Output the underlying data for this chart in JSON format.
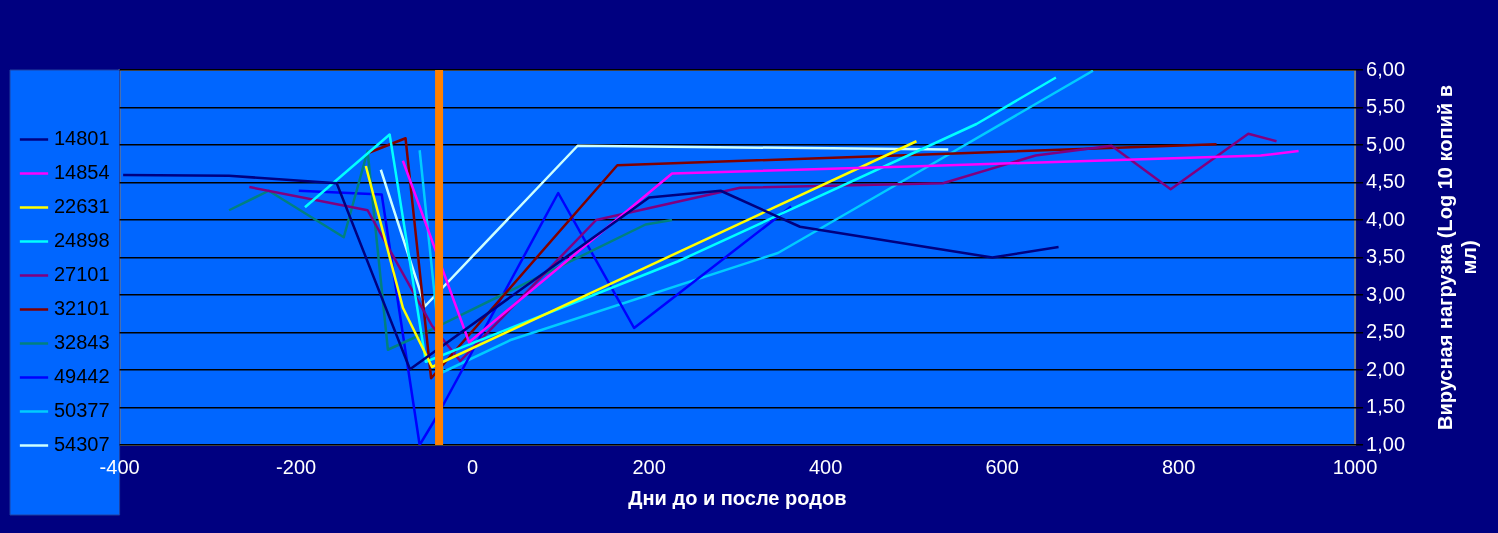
{
  "chart_data": {
    "type": "line",
    "xlabel": "Дни до и после родов",
    "ylabel": "Вирусная нагрузка (Log 10 копий в мл)",
    "xlim": [
      -400,
      1000
    ],
    "xticks": [
      -400,
      -200,
      0,
      200,
      400,
      600,
      800,
      1000
    ],
    "ylim": [
      1,
      6
    ],
    "yticks": [
      {
        "value": 1,
        "label": "1,00"
      },
      {
        "value": 1.5,
        "label": "1,50"
      },
      {
        "value": 2,
        "label": "2,00"
      },
      {
        "value": 2.5,
        "label": "2,50"
      },
      {
        "value": 3,
        "label": "3,00"
      },
      {
        "value": 3.5,
        "label": "3,50"
      },
      {
        "value": 4,
        "label": "4,00"
      },
      {
        "value": 4.5,
        "label": "4,50"
      },
      {
        "value": 5,
        "label": "5,00"
      },
      {
        "value": 5.5,
        "label": "5,50"
      },
      {
        "value": 6,
        "label": "6,00"
      }
    ],
    "grid": "y",
    "legend": "left",
    "marker": "none",
    "line_style": "solid",
    "ref_lines": [
      {
        "axis": "x",
        "value": -38,
        "color": "#ff8000"
      }
    ],
    "series": [
      {
        "name": "14801",
        "color": "#000080",
        "x": [
          -396,
          -276,
          -154,
          -71,
          200,
          281,
          371,
          514,
          589,
          664
        ],
        "values": [
          4.6,
          4.59,
          4.49,
          2.01,
          4.3,
          4.39,
          3.91,
          3.64,
          3.5,
          3.64
        ]
      },
      {
        "name": "14854",
        "color": "#ff00ff",
        "x": [
          -79,
          -4,
          226,
          514,
          893,
          936
        ],
        "values": [
          4.79,
          2.37,
          4.62,
          4.72,
          4.86,
          4.92
        ]
      },
      {
        "name": "22631",
        "color": "#ffff00",
        "x": [
          -121,
          -79,
          -46,
          503
        ],
        "values": [
          4.72,
          2.83,
          2.04,
          5.05
        ]
      },
      {
        "name": "24898",
        "color": "#00ffff",
        "x": [
          -190,
          -94,
          -53,
          233,
          571,
          661
        ],
        "values": [
          4.17,
          5.14,
          2.11,
          3.45,
          5.28,
          5.9
        ]
      },
      {
        "name": "27101",
        "color": "#800080",
        "x": [
          -253,
          -119,
          -46,
          -14,
          140,
          303,
          533,
          638,
          724,
          791,
          879,
          911
        ],
        "values": [
          4.44,
          4.13,
          2.59,
          2.12,
          4.0,
          4.43,
          4.49,
          4.86,
          4.99,
          4.41,
          5.15,
          5.05
        ]
      },
      {
        "name": "32101",
        "color": "#800000",
        "x": [
          -117,
          -76,
          -47,
          164,
          843
        ],
        "values": [
          4.9,
          5.09,
          1.89,
          4.73,
          5.01
        ]
      },
      {
        "name": "32843",
        "color": "#008080",
        "x": [
          -276,
          -231,
          -146,
          -119,
          -96,
          -57,
          196,
          226
        ],
        "values": [
          4.13,
          4.39,
          3.77,
          4.92,
          2.27,
          2.48,
          3.94,
          4.0
        ]
      },
      {
        "name": "49442",
        "color": "#0000ff",
        "x": [
          -197,
          -103,
          -60,
          -40,
          97,
          183,
          361
        ],
        "values": [
          4.39,
          4.34,
          1.0,
          1.39,
          4.36,
          2.56,
          4.18
        ]
      },
      {
        "name": "50377",
        "color": "#00ccff",
        "x": [
          -60,
          -34,
          43,
          346,
          514,
          703
        ],
        "values": [
          4.93,
          1.97,
          2.4,
          3.56,
          4.7,
          5.99
        ]
      },
      {
        "name": "54307",
        "color": "#ccffff",
        "x": [
          -104,
          -54,
          119,
          539
        ],
        "values": [
          4.67,
          2.85,
          4.99,
          4.94
        ]
      }
    ]
  }
}
